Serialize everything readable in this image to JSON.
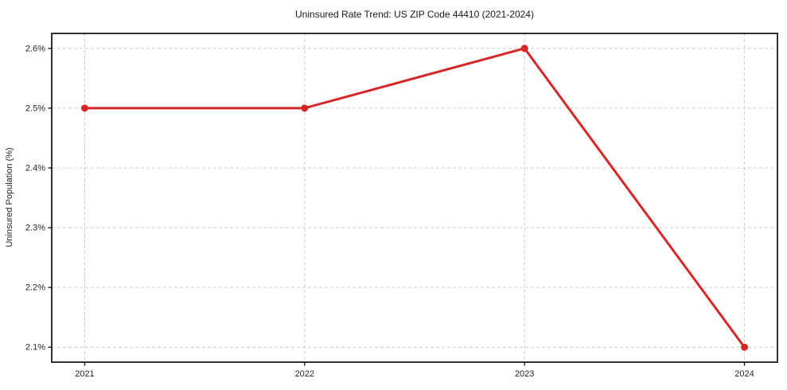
{
  "chart_data": {
    "type": "line",
    "title": "Uninsured Rate Trend: US ZIP Code 44410 (2021-2024)",
    "xlabel": "",
    "ylabel": "Uninsured Population (%)",
    "x": [
      2021,
      2022,
      2023,
      2024
    ],
    "x_tick_labels": [
      "2021",
      "2022",
      "2023",
      "2024"
    ],
    "y_ticks": [
      2.1,
      2.2,
      2.3,
      2.4,
      2.5,
      2.6
    ],
    "y_tick_labels": [
      "2.1%",
      "2.2%",
      "2.3%",
      "2.4%",
      "2.5%",
      "2.6%"
    ],
    "series": [
      {
        "name": "Uninsured Population (%)",
        "values": [
          2.5,
          2.5,
          2.6,
          2.1
        ]
      }
    ],
    "xlim": [
      2020.85,
      2024.15
    ],
    "ylim": [
      2.075,
      2.625
    ],
    "grid": true,
    "grid_style": "dashed",
    "legend": false,
    "colors": {
      "line": "#d62728",
      "marker": "#d62728",
      "grid": "#cccccc",
      "spine": "#1a1a1a",
      "background": "#ffffff"
    }
  }
}
